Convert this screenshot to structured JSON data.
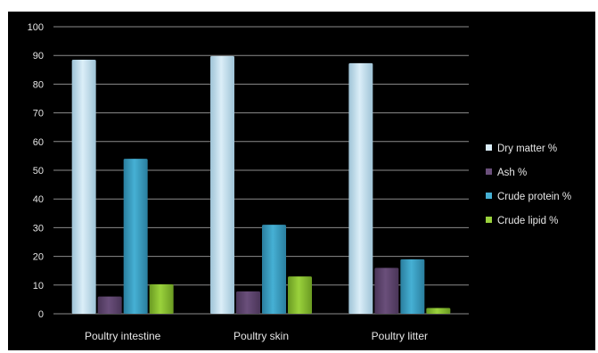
{
  "chart_data": {
    "type": "bar",
    "title": "",
    "xlabel": "",
    "ylabel": "",
    "categories": [
      "Poultry intestine",
      "Poultry skin",
      "Poultry litter"
    ],
    "series": [
      {
        "name": "Dry matter %",
        "values": [
          88.5,
          89.8,
          87.3
        ],
        "color": "#dbeef8",
        "shade": "#9ec3d6"
      },
      {
        "name": "Ash %",
        "values": [
          6,
          7.8,
          16
        ],
        "color": "#6a4f7b",
        "shade": "#4a3558"
      },
      {
        "name": "Crude protein %",
        "values": [
          54,
          31,
          19
        ],
        "color": "#46b0d4",
        "shade": "#2a7e9e"
      },
      {
        "name": "Crude lipid %",
        "values": [
          10.3,
          13,
          2
        ],
        "color": "#9ad23c",
        "shade": "#6a9a22"
      }
    ],
    "ylim": [
      0,
      100
    ],
    "yticks": [
      0,
      10,
      20,
      30,
      40,
      50,
      60,
      70,
      80,
      90,
      100
    ],
    "grid": true,
    "legend": "right",
    "background": "#000000"
  }
}
